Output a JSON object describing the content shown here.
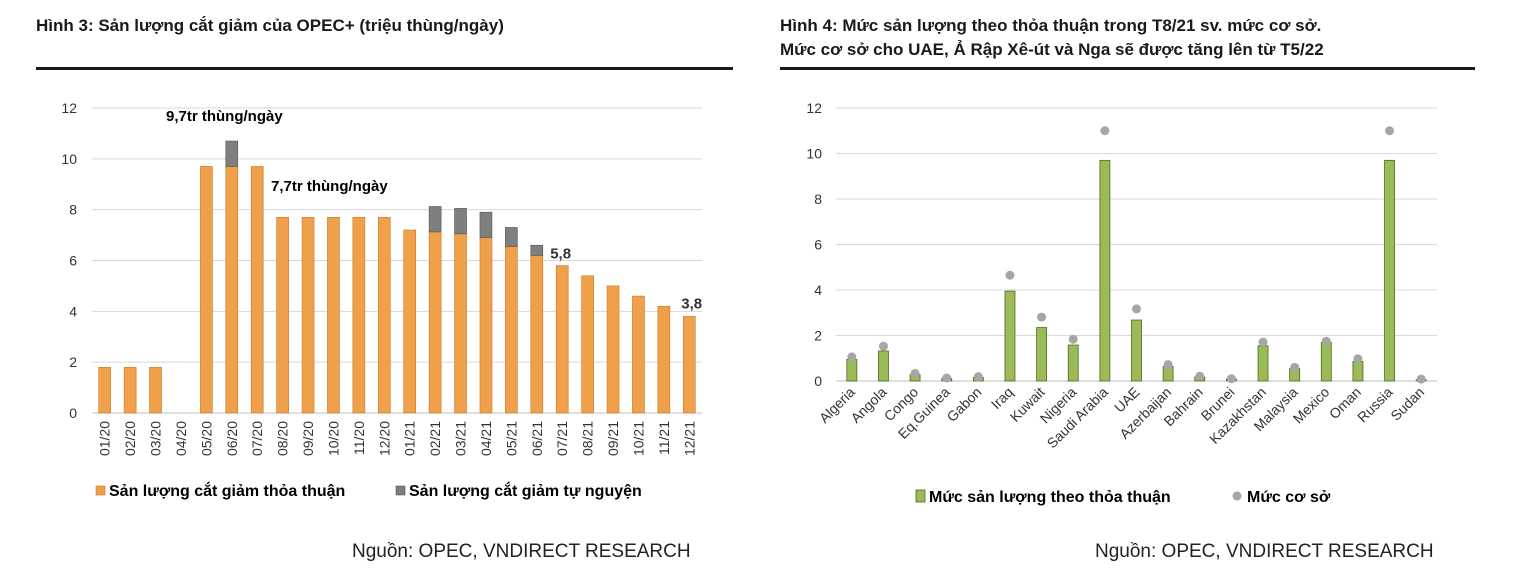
{
  "figure3": {
    "title": "Hình 3: Sản lượng cắt giảm của OPEC+ (triệu thùng/ngày)",
    "source": "Nguồn: OPEC, VNDIRECT RESEARCH"
  },
  "figure4": {
    "title_line1": "Hình 4: Mức sản lượng theo thỏa thuận trong T8/21 sv. mức cơ sở.",
    "title_line2": "Mức cơ sở cho UAE, Ả Rập Xê-út và Nga sẽ được tăng lên từ T5/22",
    "source": "Nguồn: OPEC, VNDIRECT RESEARCH"
  },
  "chart_data": [
    {
      "type": "bar",
      "stacked": true,
      "title": "Sản lượng cắt giảm của OPEC+ (triệu thùng/ngày)",
      "categories": [
        "01/20",
        "02/20",
        "03/20",
        "04/20",
        "05/20",
        "06/20",
        "07/20",
        "08/20",
        "09/20",
        "10/20",
        "11/20",
        "12/20",
        "01/21",
        "02/21",
        "03/21",
        "04/21",
        "05/21",
        "06/21",
        "07/21",
        "08/21",
        "09/21",
        "10/21",
        "11/21",
        "12/21"
      ],
      "series": [
        {
          "name": "Sản lượng cắt giảm thỏa thuận",
          "color": "#F0A04B",
          "values": [
            1.8,
            1.8,
            1.8,
            0,
            9.7,
            9.7,
            9.7,
            7.7,
            7.7,
            7.7,
            7.7,
            7.7,
            7.2,
            7.125,
            7.05,
            6.9,
            6.55,
            6.2,
            5.8,
            5.4,
            5.0,
            4.6,
            4.2,
            3.8
          ]
        },
        {
          "name": "Sản lượng cắt giảm tự nguyện",
          "color": "#7F7F7F",
          "values": [
            0,
            0,
            0,
            0,
            0,
            1.0,
            0,
            0,
            0,
            0,
            0,
            0,
            0,
            1.0,
            1.0,
            1.0,
            0.75,
            0.4,
            0,
            0,
            0,
            0,
            0,
            0
          ]
        }
      ],
      "ylim": [
        0,
        12
      ],
      "yticks": [
        0,
        2,
        4,
        6,
        8,
        10,
        12
      ],
      "grid": true,
      "annotations": [
        {
          "text": "9,7tr thùng/ngày",
          "category": "06/20"
        },
        {
          "text": "7,7tr thùng/ngày",
          "category": "08/20"
        },
        {
          "text": "5,8",
          "category": "07/21"
        },
        {
          "text": "3,8",
          "category": "12/21"
        }
      ],
      "legend": "bottom"
    },
    {
      "type": "bar",
      "title": "Mức sản lượng theo thỏa thuận trong T8/21 sv. mức cơ sở",
      "categories": [
        "Algeria",
        "Angola",
        "Congo",
        "Eq.Guinea",
        "Gabon",
        "Iraq",
        "Kuwait",
        "Nigeria",
        "Saudi Arabia",
        "UAE",
        "Azerbaijan",
        "Bahrain",
        "Brunei",
        "Kazakhstan",
        "Malaysia",
        "Mexico",
        "Oman",
        "Russia",
        "Sudan"
      ],
      "series": [
        {
          "name": "Mức sản lượng theo thỏa thuận",
          "type": "bar",
          "color": "#9BBB59",
          "values": [
            0.95,
            1.32,
            0.28,
            0.11,
            0.16,
            3.95,
            2.35,
            1.58,
            9.7,
            2.68,
            0.64,
            0.18,
            0.09,
            1.55,
            0.55,
            1.7,
            0.86,
            9.7,
            0.06
          ]
        },
        {
          "name": "Mức cơ sở",
          "type": "scatter",
          "color": "#A6A6A6",
          "values": [
            1.06,
            1.53,
            0.33,
            0.13,
            0.19,
            4.65,
            2.81,
            1.83,
            11.0,
            3.17,
            0.72,
            0.21,
            0.1,
            1.71,
            0.6,
            1.75,
            0.98,
            11.0,
            0.08
          ]
        }
      ],
      "ylim": [
        0,
        12
      ],
      "yticks": [
        0,
        2,
        4,
        6,
        8,
        10,
        12
      ],
      "grid": true,
      "legend": "bottom"
    }
  ]
}
